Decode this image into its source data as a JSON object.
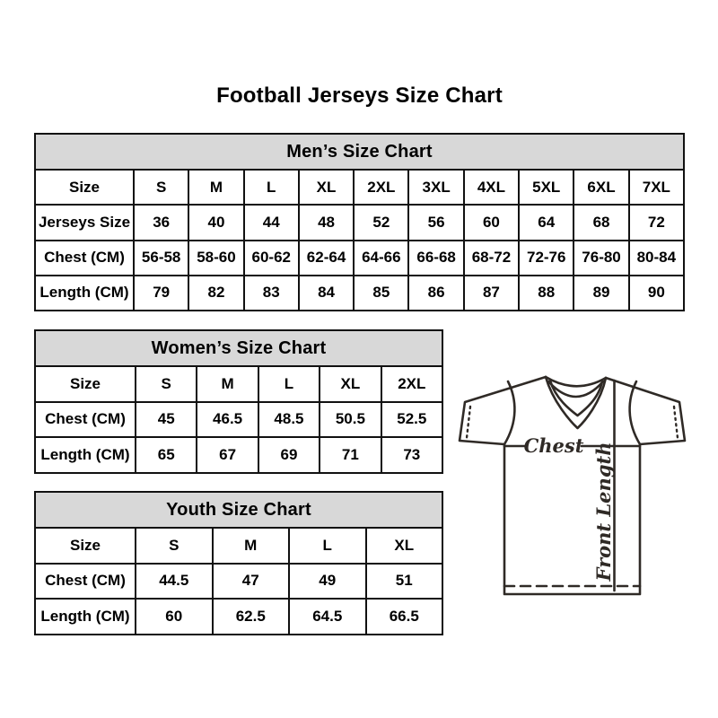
{
  "page": {
    "title": "Football Jerseys Size Chart"
  },
  "tables": [
    {
      "title": "Men’s Size Chart",
      "row_header": "Size",
      "columns": [
        "S",
        "M",
        "L",
        "XL",
        "2XL",
        "3XL",
        "4XL",
        "5XL",
        "6XL",
        "7XL"
      ],
      "rows": [
        {
          "label": "Jerseys Size",
          "values": [
            "36",
            "40",
            "44",
            "48",
            "52",
            "56",
            "60",
            "64",
            "68",
            "72"
          ]
        },
        {
          "label": "Chest (CM)",
          "values": [
            "56-58",
            "58-60",
            "60-62",
            "62-64",
            "64-66",
            "66-68",
            "68-72",
            "72-76",
            "76-80",
            "80-84"
          ]
        },
        {
          "label": "Length (CM)",
          "values": [
            "79",
            "82",
            "83",
            "84",
            "85",
            "86",
            "87",
            "88",
            "89",
            "90"
          ]
        }
      ]
    },
    {
      "title": "Women’s Size Chart",
      "row_header": "Size",
      "columns": [
        "S",
        "M",
        "L",
        "XL",
        "2XL"
      ],
      "rows": [
        {
          "label": "Chest (CM)",
          "values": [
            "45",
            "46.5",
            "48.5",
            "50.5",
            "52.5"
          ]
        },
        {
          "label": "Length (CM)",
          "values": [
            "65",
            "67",
            "69",
            "71",
            "73"
          ]
        }
      ]
    },
    {
      "title": "Youth Size Chart",
      "row_header": "Size",
      "columns": [
        "S",
        "M",
        "L",
        "XL"
      ],
      "rows": [
        {
          "label": "Chest (CM)",
          "values": [
            "44.5",
            "47",
            "49",
            "51"
          ]
        },
        {
          "label": "Length (CM)",
          "values": [
            "60",
            "62.5",
            "64.5",
            "66.5"
          ]
        }
      ]
    }
  ],
  "diagram": {
    "chest_label": "Chest",
    "front_length_label": "Front Length"
  },
  "colors": {
    "background": "#ffffff",
    "table_header_bg": "#d8d8d8",
    "table_border": "#111111",
    "text": "#000000",
    "sketch_line": "#2f2a26"
  }
}
